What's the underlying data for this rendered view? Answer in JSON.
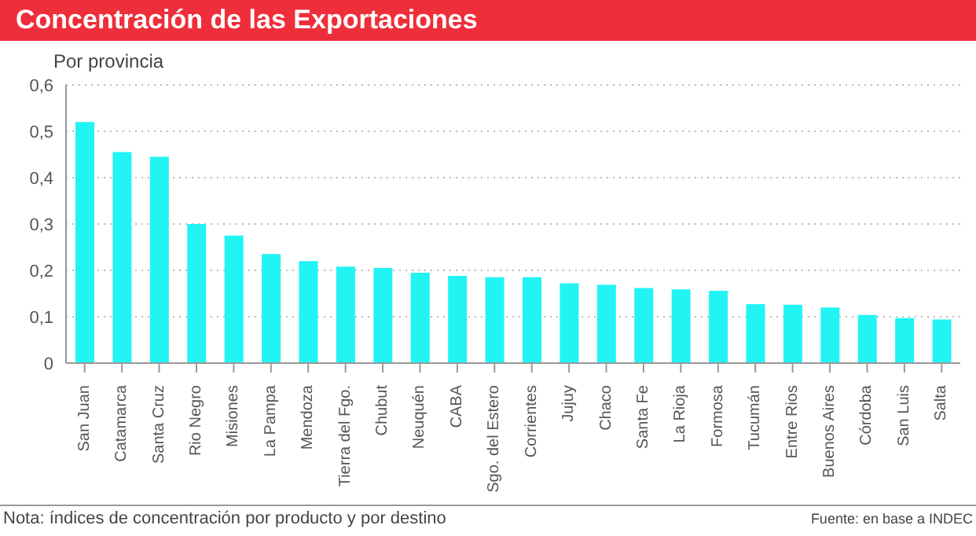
{
  "chart_data": {
    "type": "bar",
    "title": "Concentración de las Exportaciones",
    "subtitle": "Por provincia",
    "categories": [
      "San Juan",
      "Catamarca",
      "Santa Cruz",
      "Rio Negro",
      "Misiones",
      "La Pampa",
      "Mendoza",
      "Tierra del Fgo.",
      "Chubut",
      "Neuquén",
      "CABA",
      "Sgo. del Estero",
      "Corrientes",
      "Jujuy",
      "Chaco",
      "Santa Fe",
      "La Rioja",
      "Formosa",
      "Tucumán",
      "Entre Rios",
      "Buenos Aires",
      "Córdoba",
      "San Luis",
      "Salta"
    ],
    "values": [
      0.52,
      0.455,
      0.445,
      0.3,
      0.275,
      0.235,
      0.22,
      0.208,
      0.205,
      0.195,
      0.188,
      0.185,
      0.185,
      0.172,
      0.169,
      0.162,
      0.159,
      0.156,
      0.127,
      0.126,
      0.12,
      0.104,
      0.097,
      0.094
    ],
    "color": "#22f4f4",
    "ylim": [
      0,
      0.6
    ],
    "yticks": [
      0,
      {
        "value": 0.1,
        "label": "0,1"
      },
      {
        "value": 0.2,
        "label": "0,2"
      },
      {
        "value": 0.3,
        "label": "0,3"
      },
      {
        "value": 0.4,
        "label": "0,4"
      },
      {
        "value": 0.5,
        "label": "0,5"
      },
      {
        "value": 0.6,
        "label": "0,6"
      }
    ],
    "grid": "y",
    "legend": false,
    "annotations": [
      "Nota: índices de concentración por producto y por destino",
      "Fuente: en base a INDEC"
    ]
  }
}
